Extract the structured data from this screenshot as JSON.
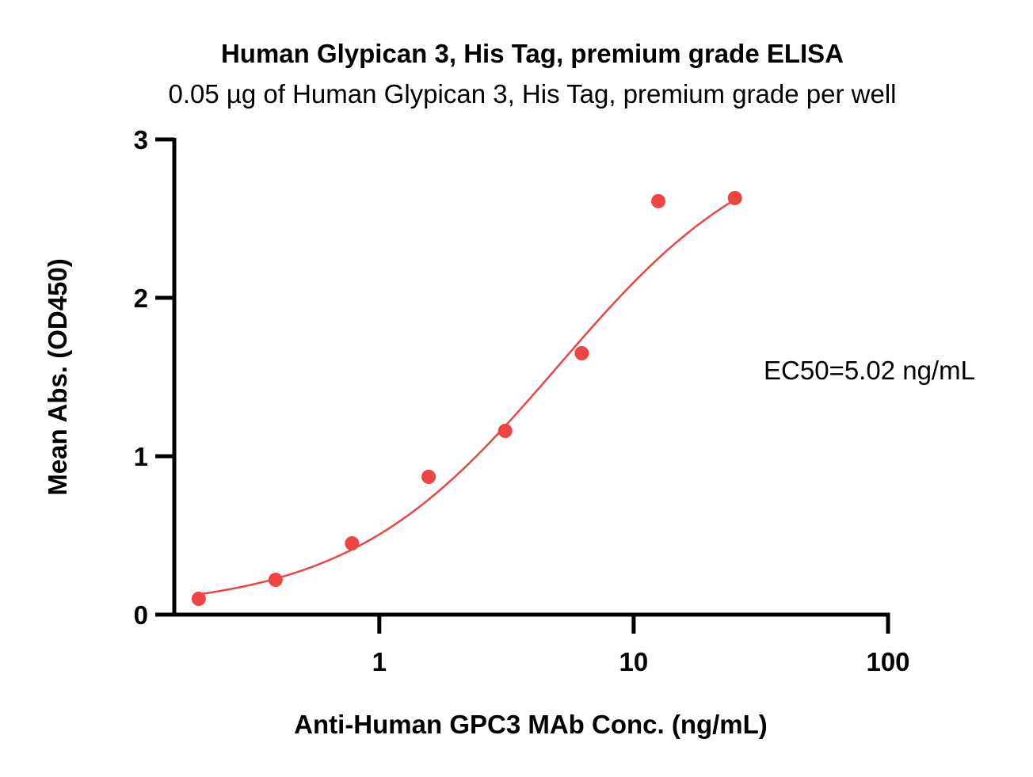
{
  "chart_data": {
    "type": "scatter",
    "title": "Human Glypican 3, His Tag, premium grade ELISA",
    "subtitle": "0.05 µg of Human Glypican 3, His Tag, premium grade per well",
    "xlabel": "Anti-Human GPC3 MAb Conc. (ng/mL)",
    "ylabel": "Mean Abs. (OD450)",
    "x_scale": "log",
    "xlim": [
      0.1563,
      100
    ],
    "ylim": [
      0,
      3
    ],
    "x_ticks": [
      1,
      10,
      100
    ],
    "x_tick_labels": [
      "1",
      "10",
      "100"
    ],
    "y_ticks": [
      0,
      1,
      2,
      3
    ],
    "y_tick_labels": [
      "0",
      "1",
      "2",
      "3"
    ],
    "grid": false,
    "color": "#EE4444",
    "series": [
      {
        "x": [
          0.195,
          0.391,
          0.781,
          1.563,
          3.125,
          6.25,
          12.5,
          25
        ],
        "y": [
          0.1,
          0.22,
          0.45,
          0.87,
          1.16,
          1.65,
          2.61,
          2.63
        ]
      }
    ],
    "fit_curve": {
      "type": "4PL",
      "bottom": 0.03,
      "top": 3.1,
      "ec50": 5.02,
      "hill": 1.05,
      "x_range": [
        0.195,
        25
      ]
    },
    "annotation": "EC50=5.02 ng/mL"
  }
}
